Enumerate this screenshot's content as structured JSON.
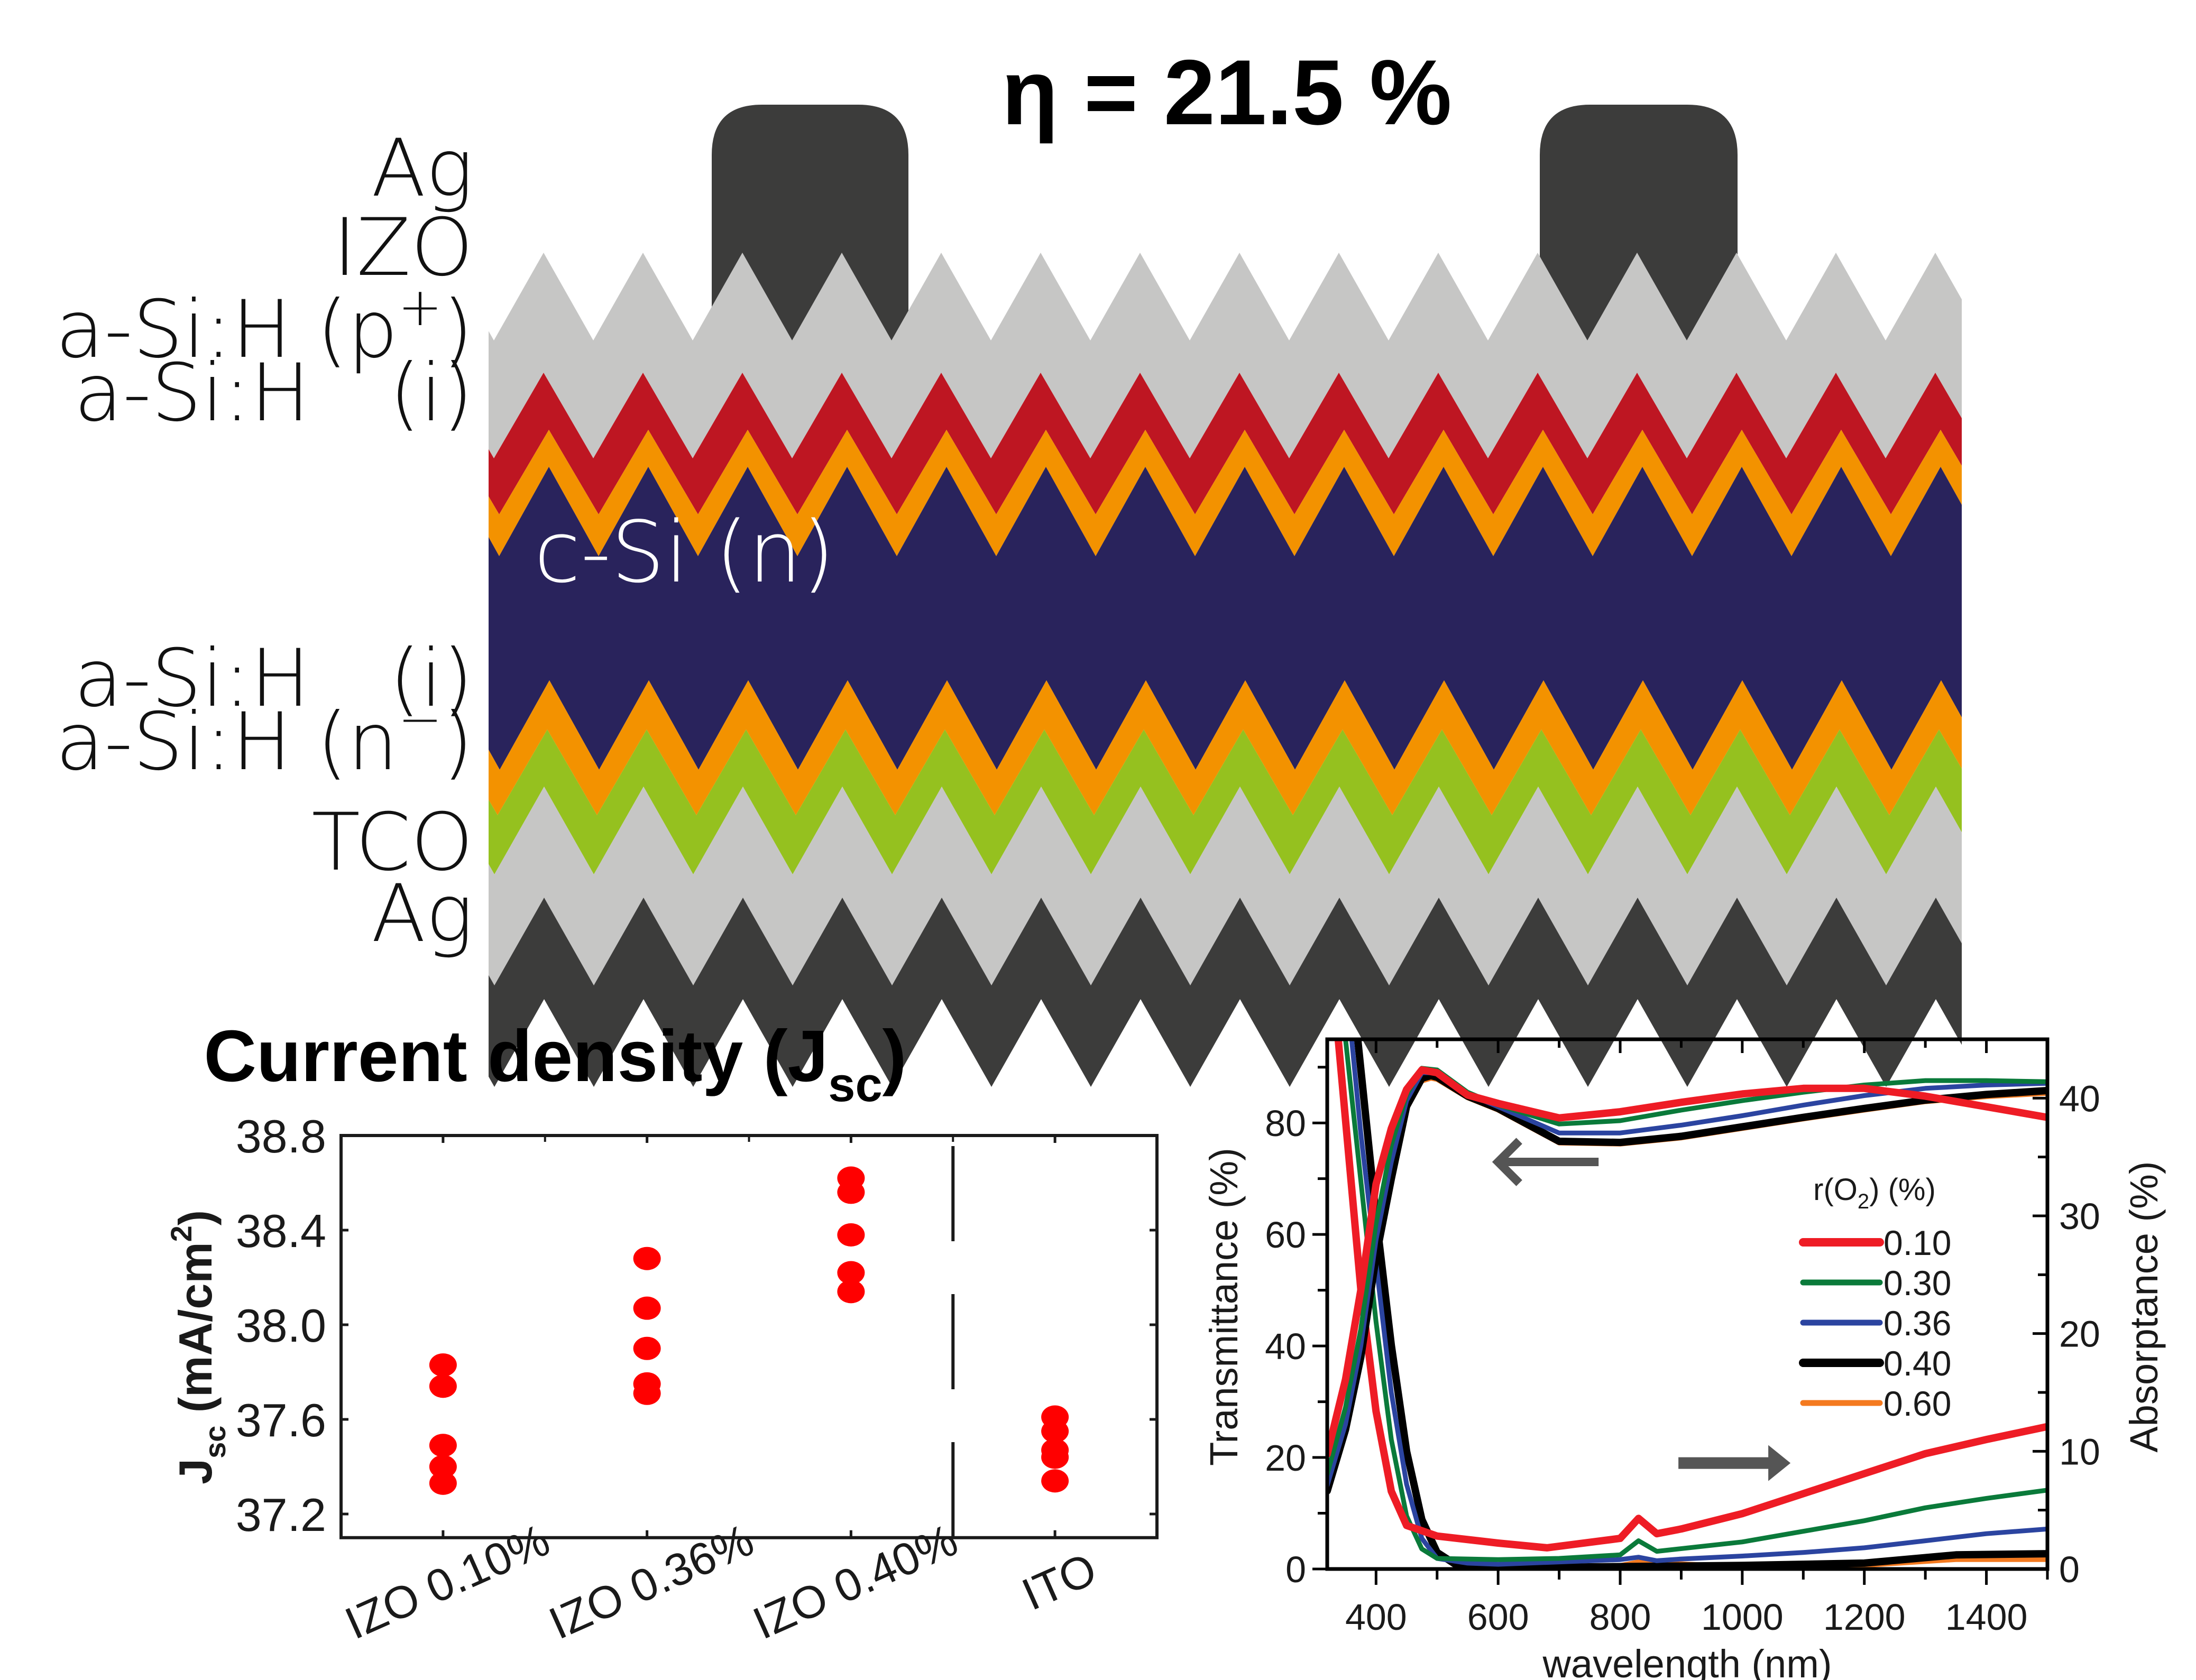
{
  "figure": {
    "efficiency_label": "η = 21.5 %",
    "layer_stack": {
      "substrate_label": "c-Si (n)",
      "layers": [
        {
          "label": "Ag",
          "side": "front",
          "role": "metal grid finger",
          "color": "#3c3c3b"
        },
        {
          "label": "IZO",
          "side": "front",
          "role": "transparent conductive oxide",
          "color": "#c6c6c5"
        },
        {
          "label": "a-Si:H (p+)",
          "side": "front",
          "role": "emitter",
          "color": "#be1622"
        },
        {
          "label": "a-Si:H (i)",
          "side": "front",
          "role": "passivation",
          "color": "#f39200"
        },
        {
          "label": "c-Si (n)",
          "side": "bulk",
          "role": "absorber",
          "color": "#29235c"
        },
        {
          "label": "a-Si:H (i)",
          "side": "rear",
          "role": "passivation",
          "color": "#f39200"
        },
        {
          "label": "a-Si:H (n-)",
          "side": "rear",
          "role": "back surface field",
          "color": "#95c11f"
        },
        {
          "label": "TCO",
          "side": "rear",
          "role": "transparent conductive oxide",
          "color": "#c6c6c5"
        },
        {
          "label": "Ag",
          "side": "rear",
          "role": "back contact",
          "color": "#3c3c3b"
        }
      ],
      "left_labels": [
        {
          "main": "Ag",
          "sup": ""
        },
        {
          "main": "IZO",
          "sup": ""
        },
        {
          "main": "a-Si:H (p",
          "sup": "+",
          "tail": ")"
        },
        {
          "main": "a-Si:H",
          "spacer": "(i)"
        },
        {
          "main": "a-Si:H",
          "spacer": "(i)"
        },
        {
          "main": "a-Si:H (n",
          "sup": "−",
          "tail": ")"
        },
        {
          "main": "TCO",
          "sup": ""
        },
        {
          "main": "Ag",
          "sup": ""
        }
      ],
      "front_fingers": 2
    }
  },
  "chart_data": [
    {
      "type": "scatter",
      "title": "Current density (J",
      "title_sub": "sc",
      "title_tail": ")",
      "xlabel": "",
      "ylabel": "J",
      "ylabel_sub": "sc",
      "ylabel_tail": " (mA/cm",
      "ylabel_sup": "2",
      "ylabel_end": ")",
      "categories": [
        "IZO 0.10%",
        "IZO 0.36%",
        "IZO 0.40%",
        "ITO"
      ],
      "xlim": [
        0.5,
        4.5
      ],
      "ylim": [
        37.1,
        38.8
      ],
      "yticks": [
        37.2,
        37.6,
        38.0,
        38.4,
        38.8
      ],
      "ytick_labels": [
        "37.2",
        "37.6",
        "38.0",
        "38.4",
        "38.8"
      ],
      "marker_color": "#ff0000",
      "separator_x": 3.5,
      "separator_style": "dashed",
      "series": [
        {
          "name": "IZO 0.10%",
          "x": 1,
          "values": [
            37.83,
            37.74,
            37.49,
            37.4,
            37.33
          ]
        },
        {
          "name": "IZO 0.36%",
          "x": 2,
          "values": [
            38.28,
            38.07,
            37.9,
            37.75,
            37.71
          ]
        },
        {
          "name": "IZO 0.40%",
          "x": 3,
          "values": [
            38.62,
            38.56,
            38.38,
            38.22,
            38.14
          ]
        },
        {
          "name": "ITO",
          "x": 4,
          "values": [
            37.61,
            37.55,
            37.47,
            37.44,
            37.34
          ]
        }
      ],
      "grid": false
    },
    {
      "type": "line",
      "title": "",
      "xlabel": "wavelength (nm)",
      "ylabel": "Transmittance (%)",
      "ylabel_right": "Absorptance (%)",
      "xlim": [
        320,
        1500
      ],
      "ylim": [
        0,
        95
      ],
      "ylim_right": [
        0,
        45
      ],
      "xticks": [
        400,
        600,
        800,
        1000,
        1200,
        1400
      ],
      "yticks": [
        0,
        20,
        40,
        60,
        80
      ],
      "yticks_right": [
        0,
        10,
        20,
        30,
        40
      ],
      "legend_title": "r(O",
      "legend_title_sub": "2",
      "legend_title_tail": ") (%)",
      "legend_position": "center-right",
      "grid": false,
      "annotations": [
        {
          "type": "arrow",
          "direction": "left",
          "meaning": "transmittance curves read on left axis",
          "at": {
            "x": 600,
            "y": 73
          }
        },
        {
          "type": "arrow",
          "direction": "right",
          "meaning": "absorptance curves read on right axis",
          "at": {
            "x": 1060,
            "y": 19
          }
        }
      ],
      "series": [
        {
          "name": "0.10",
          "color": "#ee1c25",
          "width": "thick",
          "transmittance": {
            "x": [
              320,
              350,
              375,
              400,
              425,
              450,
              475,
              500,
              550,
              600,
              700,
              800,
              900,
              1000,
              1100,
              1200,
              1300,
              1400,
              1500
            ],
            "y": [
              20.6,
              34,
              50,
              69,
              79,
              86,
              89.5,
              89,
              85,
              83.5,
              80.9,
              82,
              83.7,
              85.2,
              86.2,
              86.2,
              84.8,
              82.9,
              81
            ]
          },
          "absorptance": {
            "x": [
              338,
              375,
              400,
              425,
              450,
              500,
              600,
              680,
              800,
              830,
              860,
              900,
              1000,
              1100,
              1200,
              1300,
              1400,
              1500
            ],
            "y": [
              45,
              23.8,
              13.4,
              6.6,
              3.7,
              2.8,
              2.2,
              1.8,
              2.6,
              4.3,
              3.0,
              3.4,
              4.7,
              6.4,
              8.1,
              9.8,
              11.0,
              12.1
            ]
          }
        },
        {
          "name": "0.30",
          "color": "#0a7a3a",
          "width": "normal",
          "transmittance": {
            "x": [
              320,
              350,
              375,
              400,
              425,
              450,
              475,
              500,
              550,
              600,
              700,
              800,
              900,
              1000,
              1100,
              1200,
              1300,
              1400,
              1500
            ],
            "y": [
              17,
              29,
              43,
              62,
              76,
              85,
              89.8,
              89.5,
              85.5,
              83.2,
              79.8,
              80.4,
              82.3,
              84,
              85.5,
              86.8,
              87.6,
              87.6,
              87.4
            ]
          },
          "absorptance": {
            "x": [
              350,
              375,
              400,
              425,
              450,
              475,
              500,
              600,
              700,
              800,
              830,
              860,
              1000,
              1100,
              1200,
              1300,
              1400,
              1500
            ],
            "y": [
              45,
              33,
              21,
              11,
              4.5,
              1.7,
              0.9,
              0.8,
              0.9,
              1.2,
              2.4,
              1.5,
              2.3,
              3.2,
              4.1,
              5.2,
              6.0,
              6.7
            ]
          }
        },
        {
          "name": "0.36",
          "color": "#2b44a0",
          "width": "normal",
          "transmittance": {
            "x": [
              320,
              350,
              375,
              400,
              425,
              450,
              475,
              500,
              550,
              600,
              700,
              800,
              900,
              1000,
              1100,
              1200,
              1300,
              1400,
              1500
            ],
            "y": [
              15,
              26,
              40,
              59,
              73,
              84,
              89,
              89,
              85.2,
              82.9,
              78.2,
              78.2,
              79.6,
              81.3,
              83.2,
              84.9,
              86.2,
              86.8,
              87.1
            ]
          },
          "absorptance": {
            "x": [
              360,
              375,
              400,
              425,
              450,
              475,
              500,
              550,
              600,
              800,
              830,
              860,
              900,
              1000,
              1100,
              1200,
              1300,
              1400,
              1500
            ],
            "y": [
              45,
              37,
              26,
              15,
              7.2,
              2.6,
              0.9,
              0.5,
              0.4,
              0.8,
              1.0,
              0.7,
              0.85,
              1.1,
              1.4,
              1.8,
              2.4,
              3.0,
              3.4
            ]
          }
        },
        {
          "name": "0.40",
          "color": "#000000",
          "width": "thick",
          "transmittance": {
            "x": [
              320,
              350,
              375,
              400,
              425,
              450,
              475,
              490,
              500,
              550,
              600,
              700,
              800,
              900,
              1000,
              1100,
              1200,
              1300,
              1400,
              1500
            ],
            "y": [
              14,
              25,
              38,
              56,
              70,
              83,
              88,
              88.5,
              88.2,
              84.8,
              82.6,
              76.7,
              76.5,
              77.6,
              79.3,
              81,
              82.6,
              84.1,
              85.1,
              85.8
            ]
          },
          "absorptance": {
            "x": [
              370,
              400,
              425,
              450,
              475,
              500,
              530,
              600,
              800,
              1000,
              1200,
              1350,
              1500
            ],
            "y": [
              45,
              30,
              19,
              10,
              4.2,
              1.4,
              0.4,
              0.1,
              0.2,
              0.3,
              0.5,
              1.2,
              1.3
            ]
          }
        },
        {
          "name": "0.60",
          "color": "#f47a1f",
          "width": "normal",
          "transmittance": {
            "x": [
              320,
              350,
              375,
              400,
              425,
              450,
              475,
              490,
              500,
              550,
              600,
              700,
              800,
              900,
              1000,
              1100,
              1200,
              1300,
              1400,
              1500
            ],
            "y": [
              14,
              25,
              38,
              56,
              70,
              82.5,
              87.5,
              88,
              87.8,
              84.5,
              82.3,
              76.4,
              76.2,
              77.3,
              79,
              80.7,
              82.3,
              83.8,
              84.7,
              85.3
            ]
          },
          "absorptance": {
            "x": [
              370,
              400,
              425,
              450,
              475,
              500,
              530,
              600,
              800,
              830,
              1000,
              1200,
              1350,
              1500
            ],
            "y": [
              45,
              30,
              19,
              10,
              4.2,
              1.4,
              0.4,
              0,
              0.3,
              0.6,
              0.2,
              0.3,
              0.8,
              0.8
            ]
          }
        }
      ]
    }
  ]
}
